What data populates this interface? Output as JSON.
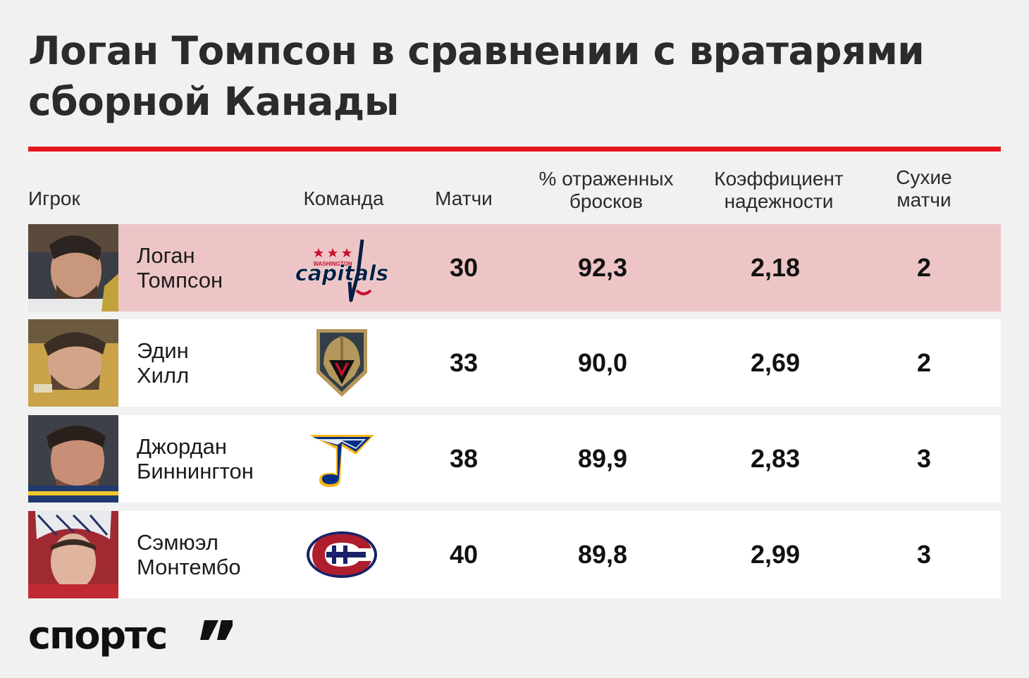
{
  "title": "Логан Томпсон в сравнении с вратарями сборной Канады",
  "accent_color": "#e4171f",
  "highlight_color": "#eec5c7",
  "headers": {
    "player": "Игрок",
    "team": "Команда",
    "games": "Матчи",
    "save_pct_line1": "% отраженных",
    "save_pct_line2": "бросков",
    "gaa_line1": "Коэффициент",
    "gaa_line2": "надежности",
    "shutouts_line1": "Сухие",
    "shutouts_line2": "матчи"
  },
  "chart_data": {
    "type": "table",
    "title": "Логан Томпсон в сравнении с вратарями сборной Канады",
    "columns": [
      "Игрок",
      "Команда",
      "Матчи",
      "% отраженных бросков",
      "Коэффициент надежности",
      "Сухие матчи"
    ],
    "rows": [
      {
        "name_line1": "Логан",
        "name_line2": "Томпсон",
        "team_logo": "washington-capitals-logo",
        "games": "30",
        "save_pct": "92,3",
        "gaa": "2,18",
        "shutouts": "2",
        "highlighted": true
      },
      {
        "name_line1": "Эдин",
        "name_line2": "Хилл",
        "team_logo": "vegas-golden-knights-logo",
        "games": "33",
        "save_pct": "90,0",
        "gaa": "2,69",
        "shutouts": "2",
        "highlighted": false
      },
      {
        "name_line1": "Джордан",
        "name_line2": "Биннингтон",
        "team_logo": "st-louis-blues-logo",
        "games": "38",
        "save_pct": "89,9",
        "gaa": "2,83",
        "shutouts": "3",
        "highlighted": false
      },
      {
        "name_line1": "Сэмюэл",
        "name_line2": "Монтембо",
        "team_logo": "montreal-canadiens-logo",
        "games": "40",
        "save_pct": "89,8",
        "gaa": "2,99",
        "shutouts": "3",
        "highlighted": false
      }
    ]
  },
  "logo_text": {
    "capitals_small": "WASHINGTON",
    "capitals_main": "capitals"
  },
  "brand": "спортс"
}
